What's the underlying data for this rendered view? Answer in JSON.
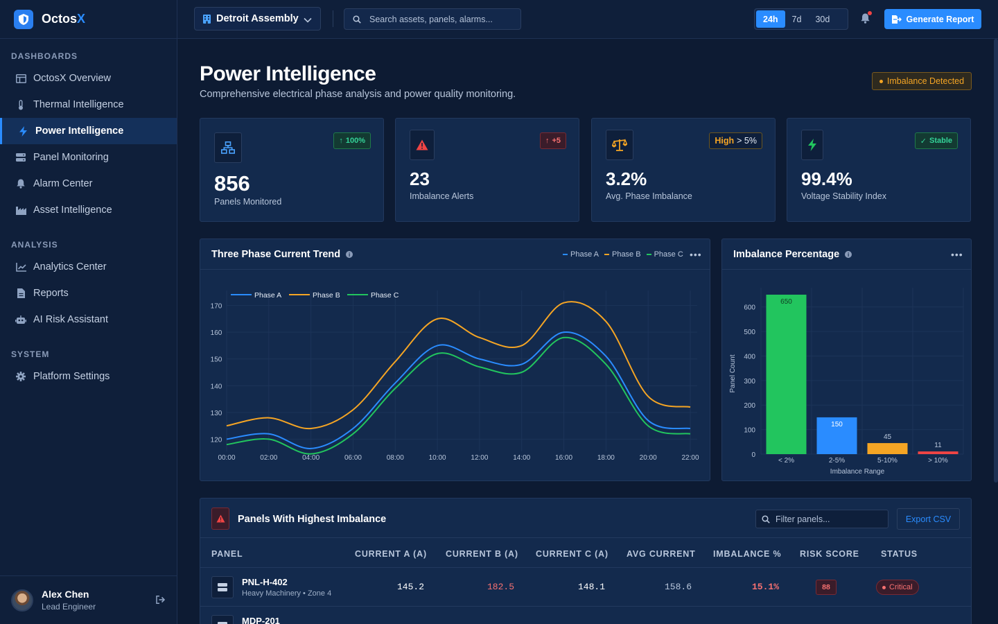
{
  "brand": {
    "name_main": "Octos",
    "name_accent": "X"
  },
  "sidebar": {
    "sections": [
      {
        "title": "DASHBOARDS",
        "items": [
          {
            "label": "OctosX Overview",
            "icon": "layout-icon"
          },
          {
            "label": "Thermal Intelligence",
            "icon": "thermometer-icon"
          },
          {
            "label": "Power Intelligence",
            "icon": "bolt-icon",
            "active": true
          },
          {
            "label": "Panel Monitoring",
            "icon": "server-icon"
          },
          {
            "label": "Alarm Center",
            "icon": "bell-icon"
          },
          {
            "label": "Asset Intelligence",
            "icon": "industry-icon"
          }
        ]
      },
      {
        "title": "ANALYSIS",
        "items": [
          {
            "label": "Analytics Center",
            "icon": "chart-line-icon"
          },
          {
            "label": "Reports",
            "icon": "file-icon"
          },
          {
            "label": "AI Risk Assistant",
            "icon": "robot-icon"
          }
        ]
      },
      {
        "title": "SYSTEM",
        "items": [
          {
            "label": "Platform Settings",
            "icon": "gear-icon"
          }
        ]
      }
    ],
    "user": {
      "name": "Alex Chen",
      "role": "Lead Engineer"
    }
  },
  "topbar": {
    "site": "Detroit Assembly",
    "search_placeholder": "Search assets, panels, alarms...",
    "ranges": [
      "24h",
      "7d",
      "30d"
    ],
    "active_range": "24h",
    "generate_label": "Generate Report"
  },
  "page": {
    "title": "Power Intelligence",
    "subtitle": "Comprehensive electrical phase analysis and power quality monitoring.",
    "badge": "Imbalance Detected"
  },
  "kpis": [
    {
      "value": "856",
      "label": "Panels Monitored",
      "chip": "100%",
      "chip_type": "green"
    },
    {
      "value": "23",
      "label": "Imbalance Alerts",
      "chip": "+5",
      "chip_type": "red"
    },
    {
      "value": "3.2%",
      "label": "Avg. Phase Imbalance",
      "chip_high": "High",
      "chip_rest": "> 5%",
      "chip_type": "amber"
    },
    {
      "value": "99.4%",
      "label": "Voltage Stability Index",
      "chip": "Stable",
      "chip_type": "green"
    }
  ],
  "colors": {
    "phase_a": "#2a8cff",
    "phase_b": "#f5a524",
    "phase_c": "#22c55e",
    "red": "#ef4444",
    "accent": "#2a8cff"
  },
  "chart_data": [
    {
      "type": "line",
      "title": "Three Phase Current Trend",
      "x": [
        "00:00",
        "02:00",
        "04:00",
        "06:00",
        "08:00",
        "10:00",
        "12:00",
        "14:00",
        "16:00",
        "18:00",
        "20:00",
        "22:00"
      ],
      "series": [
        {
          "name": "Phase A",
          "values": [
            120,
            122,
            116.5,
            124,
            141,
            155,
            150,
            148,
            160,
            151,
            127,
            124
          ]
        },
        {
          "name": "Phase B",
          "values": [
            125,
            128,
            124,
            131,
            149,
            165,
            158,
            155,
            171,
            164,
            136,
            132
          ]
        },
        {
          "name": "Phase C",
          "values": [
            118,
            120,
            114.5,
            122,
            139,
            152,
            147,
            145,
            158,
            148,
            125,
            122
          ]
        }
      ],
      "yticks": [
        120,
        130,
        140,
        150,
        160,
        170
      ],
      "ylim": [
        117,
        173
      ]
    },
    {
      "type": "bar",
      "title": "Imbalance Percentage",
      "categories": [
        "< 2%",
        "2-5%",
        "5-10%",
        "> 10%"
      ],
      "values": [
        650,
        150,
        45,
        11
      ],
      "bar_colors": [
        "#22c55e",
        "#2a8cff",
        "#f5a524",
        "#ef4444"
      ],
      "xlabel": "Imbalance Range",
      "ylabel": "Panel Count",
      "yticks": [
        0,
        100,
        200,
        300,
        400,
        500,
        600
      ],
      "ylim": [
        0,
        650
      ]
    }
  ],
  "table": {
    "title": "Panels With Highest Imbalance",
    "filter_placeholder": "Filter panels...",
    "export_label": "Export CSV",
    "columns": [
      "PANEL",
      "CURRENT A (A)",
      "CURRENT B (A)",
      "CURRENT C (A)",
      "AVG CURRENT",
      "IMBALANCE %",
      "RISK SCORE",
      "STATUS"
    ],
    "rows": [
      {
        "panel": "PNL-H-402",
        "sub": "Heavy Machinery • Zone 4",
        "a": "145.2",
        "b": "182.5",
        "c": "148.1",
        "avg": "158.6",
        "imb": "15.1%",
        "risk": "88",
        "status": "Critical"
      },
      {
        "panel": "MDP-201",
        "sub": "",
        "a": "",
        "b": "",
        "c": "",
        "avg": "",
        "imb": "",
        "risk": "",
        "status": ""
      }
    ]
  }
}
